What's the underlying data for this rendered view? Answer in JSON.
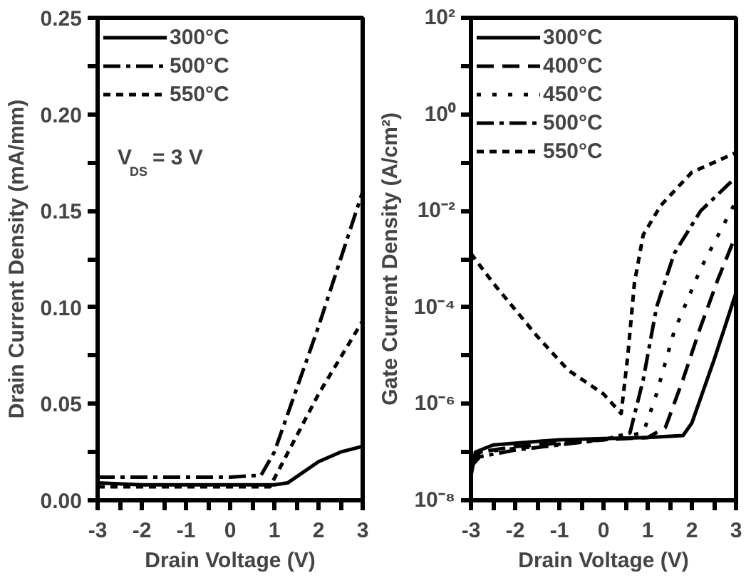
{
  "chart_data": [
    {
      "type": "line",
      "xlabel": "Drain Voltage (V)",
      "ylabel": "Drain Current Density (mA/mm)",
      "legend": "top left",
      "grid": false,
      "xlim": [
        -3,
        3
      ],
      "ylim": [
        0,
        0.25
      ],
      "xticks": [
        -3,
        -2,
        -1,
        0,
        1,
        2,
        3,
        {
          "value": -2.5,
          "label": null
        },
        {
          "value": -1.5,
          "label": null
        },
        {
          "value": -0.5,
          "label": null
        },
        {
          "value": 0.5,
          "label": null
        },
        {
          "value": 1.5,
          "label": null
        },
        {
          "value": 2.5,
          "label": null
        }
      ],
      "yticks": [
        {
          "value": 0,
          "label": "0.00"
        },
        {
          "value": 0.05,
          "label": "0.05"
        },
        {
          "value": 0.1,
          "label": "0.10"
        },
        {
          "value": 0.15,
          "label": "0.15"
        },
        {
          "value": 0.2,
          "label": "0.20"
        },
        {
          "value": 0.25,
          "label": "0.25"
        },
        {
          "value": 0.025,
          "label": null
        },
        {
          "value": 0.075,
          "label": null
        },
        {
          "value": 0.125,
          "label": null
        },
        {
          "value": 0.175,
          "label": null
        },
        {
          "value": 0.225,
          "label": null
        }
      ],
      "annotations": [
        "V$_{DS}$ = 3 V"
      ],
      "series": [
        {
          "name": "300°C",
          "color": "#000000",
          "line_style": "solid",
          "x": [
            -3,
            -2,
            0,
            1,
            1.3,
            2,
            2.5,
            3
          ],
          "values": [
            0.009,
            0.008,
            0.008,
            0.008,
            0.009,
            0.02,
            0.025,
            0.028
          ]
        },
        {
          "name": "500°C",
          "color": "#000000",
          "line_style": "dashdot",
          "x": [
            -3,
            -2,
            0,
            0.7,
            1,
            2,
            3
          ],
          "values": [
            0.012,
            0.012,
            0.012,
            0.013,
            0.025,
            0.09,
            0.16
          ]
        },
        {
          "name": "550°C",
          "color": "#000000",
          "line_style": "shortdash",
          "x": [
            -3,
            0,
            0.9,
            1.2,
            2,
            3
          ],
          "values": [
            0.007,
            0.007,
            0.007,
            0.02,
            0.055,
            0.093
          ]
        }
      ]
    },
    {
      "type": "line",
      "xlabel": "Drain Voltage (V)",
      "ylabel": "Gate Current Density (A/cm²)",
      "legend": "top left",
      "grid": false,
      "log": "y",
      "xlim": [
        -3,
        3
      ],
      "ylim": [
        1e-08,
        100
      ],
      "xticks": [
        -3,
        -2,
        -1,
        0,
        1,
        2,
        3,
        {
          "value": -2.5,
          "label": null
        },
        {
          "value": -1.5,
          "label": null
        },
        {
          "value": -0.5,
          "label": null
        },
        {
          "value": 0.5,
          "label": null
        },
        {
          "value": 1.5,
          "label": null
        },
        {
          "value": 2.5,
          "label": null
        }
      ],
      "yticks": [
        {
          "value": 1e-08,
          "label": "10⁻⁸"
        },
        {
          "value": 1e-06,
          "label": "10⁻⁶"
        },
        {
          "value": 0.0001,
          "label": "10⁻⁴"
        },
        {
          "value": 0.01,
          "label": "10⁻²"
        },
        {
          "value": 1,
          "label": "10⁰"
        },
        {
          "value": 100,
          "label": "10²"
        },
        {
          "value": 1e-07,
          "label": null
        },
        {
          "value": 1e-05,
          "label": null
        },
        {
          "value": 0.001,
          "label": null
        },
        {
          "value": 0.1,
          "label": null
        },
        {
          "value": 10,
          "label": null
        }
      ],
      "series": [
        {
          "name": "300°C",
          "color": "#000000",
          "line_style": "solid",
          "x": [
            -3,
            -2.9,
            -2.5,
            -1,
            0,
            1,
            1.8,
            2,
            2.5,
            3
          ],
          "values": [
            3.2e-08,
            1e-07,
            1.4e-07,
            1.8e-07,
            1.9e-07,
            2e-07,
            2.2e-07,
            4e-07,
            8e-06,
            0.0002
          ]
        },
        {
          "name": "400°C",
          "color": "#000000",
          "line_style": "dashed",
          "x": [
            -3,
            -2.8,
            -2,
            0,
            1,
            1.4,
            1.8,
            2.2,
            2.6,
            3
          ],
          "values": [
            5e-08,
            1e-07,
            1.3e-07,
            1.8e-07,
            2e-07,
            3.2e-07,
            3.2e-06,
            4e-05,
            0.0004,
            0.0032
          ]
        },
        {
          "name": "450°C",
          "color": "#000000",
          "line_style": "dotted",
          "x": [
            -3,
            -2.8,
            0,
            0.9,
            1.2,
            1.6,
            2.2,
            3
          ],
          "values": [
            5e-08,
            1e-07,
            1.8e-07,
            2.5e-07,
            1.6e-06,
            3.2e-05,
            0.00063,
            0.016
          ]
        },
        {
          "name": "500°C",
          "color": "#000000",
          "line_style": "dashdot",
          "x": [
            -3,
            -2.8,
            -2,
            0,
            0.6,
            0.9,
            1.2,
            1.6,
            2.2,
            3
          ],
          "values": [
            5e-08,
            8e-08,
            1.1e-07,
            1.8e-07,
            2.5e-07,
            3.2e-06,
            0.0001,
            0.0013,
            0.01,
            0.05
          ]
        },
        {
          "name": "550°C",
          "color": "#000000",
          "line_style": "shortdash",
          "x": [
            -3,
            -2.5,
            -1.5,
            -0.8,
            0,
            0.4,
            0.55,
            0.7,
            0.9,
            1.3,
            2,
            3
          ],
          "values": [
            0.0013,
            0.00032,
            2.5e-05,
            5e-06,
            1.6e-06,
            6.3e-07,
            1e-05,
            0.00032,
            0.0032,
            0.013,
            0.063,
            0.16
          ]
        }
      ]
    }
  ]
}
